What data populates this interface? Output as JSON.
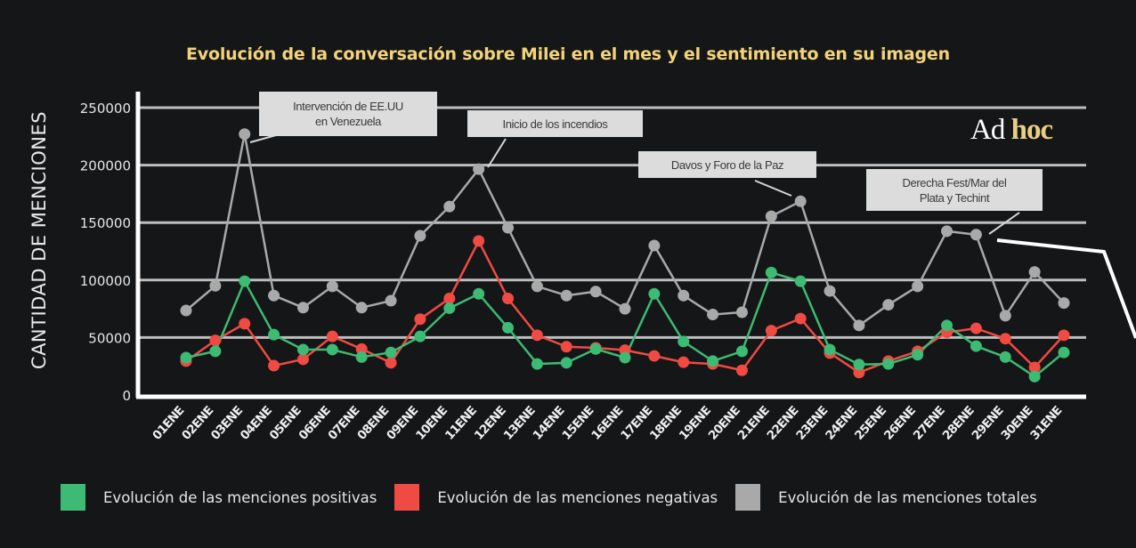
{
  "chart_data": {
    "type": "line",
    "title": "Evolución de la conversación sobre Milei en el mes y el sentimiento en su imagen",
    "xlabel": "",
    "ylabel": "CANTIDAD DE MENCIONES",
    "ylim": [
      0,
      250000
    ],
    "yticks": [
      "0",
      "50000",
      "100000",
      "150000",
      "200000",
      "250000"
    ],
    "grid": true,
    "legend_position": "bottom",
    "categories": [
      "01ENE",
      "02ENE",
      "03ENE",
      "04ENE",
      "05ENE",
      "06ENE",
      "07ENE",
      "08ENE",
      "09ENE",
      "10ENE",
      "11ENE",
      "12ENE",
      "13ENE",
      "14ENE",
      "15ENE",
      "16ENE",
      "17ENE",
      "18ENE",
      "19ENE",
      "20ENE",
      "21ENE",
      "22ENE",
      "23ENE",
      "24ENE",
      "25ENE",
      "26ENE",
      "27ENE",
      "28ENE",
      "29ENE",
      "30ENE",
      "31ENE"
    ],
    "series": [
      {
        "name": "Evolución de las menciones totales",
        "color": "#a9a9a9",
        "values": [
          73500,
          95000,
          227000,
          86500,
          76000,
          94500,
          76000,
          82000,
          138500,
          164000,
          196500,
          145500,
          94500,
          86500,
          90000,
          75000,
          130000,
          86500,
          70000,
          72000,
          155500,
          168500,
          90500,
          60500,
          78500,
          94500,
          142500,
          139500,
          69000,
          107000,
          80000
        ]
      },
      {
        "name": "Evolución de las menciones positivas",
        "color": "#3dba73",
        "values": [
          32500,
          38000,
          99000,
          52500,
          39500,
          39500,
          33000,
          37000,
          51000,
          75500,
          88000,
          58500,
          27000,
          28000,
          40000,
          32500,
          88000,
          46500,
          29500,
          38000,
          106500,
          99000,
          39500,
          26500,
          27000,
          35000,
          60500,
          42500,
          33000,
          16000,
          37000
        ]
      },
      {
        "name": "Evolución de las menciones negativas",
        "color": "#ef4a43",
        "values": [
          29500,
          47500,
          62000,
          25500,
          31000,
          51000,
          40000,
          28000,
          66000,
          84000,
          134000,
          84000,
          52000,
          42000,
          41000,
          39000,
          34000,
          28500,
          27000,
          21500,
          56000,
          66500,
          36500,
          19500,
          29500,
          38000,
          54500,
          58000,
          49000,
          24000,
          52000
        ]
      }
    ],
    "annotations": [
      {
        "text_lines": [
          "Intervención de EE.UU",
          "en Venezuela"
        ],
        "category": "03ENE",
        "series": "totales"
      },
      {
        "text_lines": [
          "Inicio de los incendios"
        ],
        "category": "11ENE",
        "series": "totales"
      },
      {
        "text_lines": [
          "Davos y Foro de la Paz"
        ],
        "category": "22ENE",
        "series": "totales"
      },
      {
        "text_lines": [
          "Derecha Fest/Mar del",
          "Plata y Techint"
        ],
        "category": "28ENE",
        "series": "totales"
      }
    ]
  },
  "logo": {
    "part1": "Ad",
    "part2": "hoc"
  },
  "legend": [
    {
      "label": "Evolución de las menciones positivas",
      "color": "#3dba73"
    },
    {
      "label": "Evolución de las menciones negativas",
      "color": "#ef4a43"
    },
    {
      "label": "Evolución de las menciones totales",
      "color": "#a9a9a9"
    }
  ]
}
